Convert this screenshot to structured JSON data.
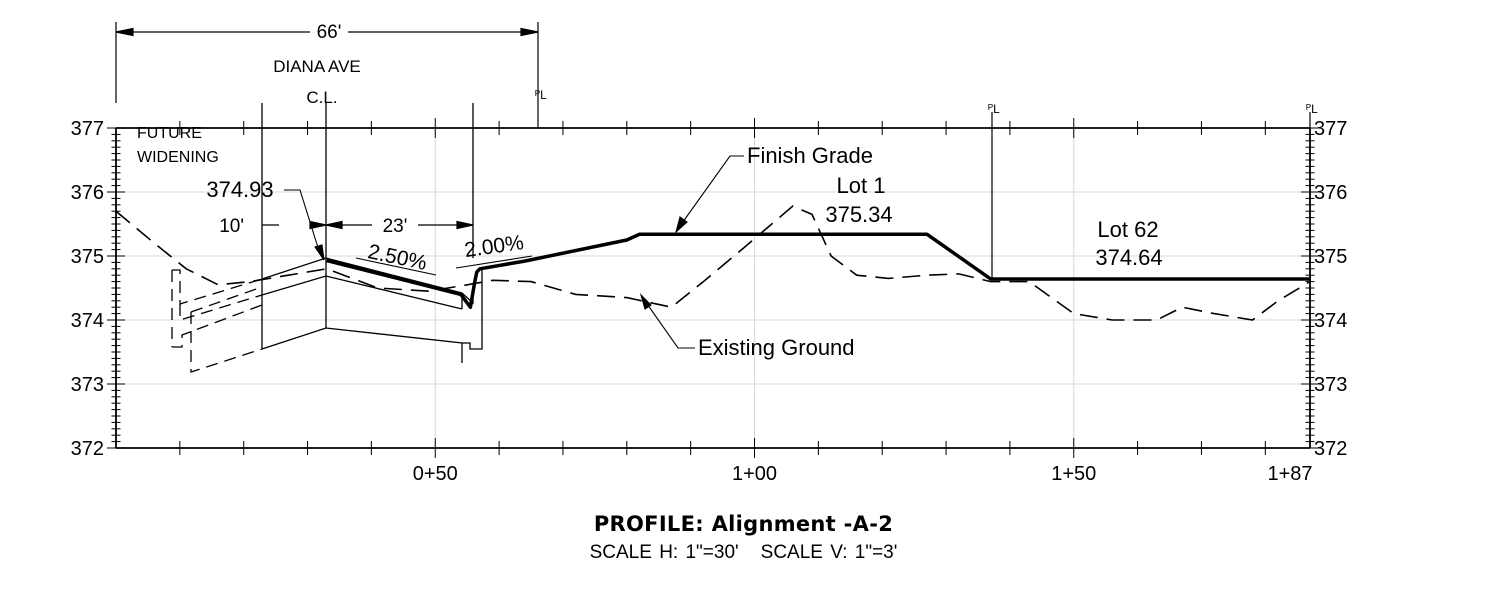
{
  "profile": {
    "title": "PROFILE:  Alignment -A-2",
    "scale_h": "SCALE H: 1\"=30'",
    "scale_v": "SCALE V: 1\"=3'"
  },
  "axes": {
    "y_left_labels": [
      "377",
      "376",
      "375",
      "374",
      "373",
      "372"
    ],
    "y_right_labels": [
      "377",
      "376",
      "375",
      "374",
      "373",
      "372"
    ],
    "x_labels": [
      "0+50",
      "1+00",
      "1+50",
      "1+87"
    ]
  },
  "annotations": {
    "width_66": "66'",
    "street_name": "DIANA AVE",
    "centerline": "C.L.",
    "future_widening_1": "FUTURE",
    "future_widening_2": "WIDENING",
    "elev_cl": "374.93",
    "dim_10": "10'",
    "dim_23": "23'",
    "slope_250": "2.50%",
    "slope_200": "2.00%",
    "finish_grade": "Finish Grade",
    "existing_ground": "Existing Ground",
    "lot1_name": "Lot 1",
    "lot1_elev": "375.34",
    "lot62_name": "Lot 62",
    "lot62_elev": "374.64",
    "pl_1": "ᴾL",
    "pl_2": "ᴾL",
    "pl_3": "ᴾL"
  },
  "chart_data": {
    "type": "line",
    "xlabel": "",
    "ylabel": "",
    "xlim": [
      0,
      187
    ],
    "ylim": [
      372,
      377
    ],
    "x_tick_labels": [
      "0+50",
      "1+00",
      "1+50",
      "1+87"
    ],
    "y_tick_labels": [
      "372",
      "373",
      "374",
      "375",
      "376",
      "377"
    ],
    "series": [
      {
        "name": "Finish Grade",
        "x": [
          33,
          54,
          55.5,
          56.2,
          56.5,
          57,
          64,
          80,
          82,
          106,
          127,
          137,
          187
        ],
        "y": [
          374.93,
          374.4,
          374.2,
          374.6,
          374.75,
          374.8,
          374.92,
          375.25,
          375.34,
          375.34,
          375.34,
          374.64,
          374.64
        ]
      },
      {
        "name": "Existing Ground",
        "x": [
          0,
          6,
          11,
          16,
          21,
          27,
          33,
          41,
          49,
          55,
          59,
          65,
          72,
          80,
          87,
          92,
          98,
          106,
          109,
          112,
          116,
          121,
          127,
          132,
          137,
          143,
          150,
          156,
          163,
          167,
          172,
          178,
          182,
          187
        ],
        "y": [
          375.7,
          375.2,
          374.8,
          374.55,
          374.6,
          374.7,
          374.8,
          374.5,
          374.45,
          374.55,
          374.62,
          374.6,
          374.4,
          374.35,
          374.2,
          374.6,
          375.1,
          375.78,
          375.65,
          375.0,
          374.7,
          374.65,
          374.7,
          374.72,
          374.6,
          374.6,
          374.1,
          374.0,
          374.0,
          374.2,
          374.1,
          374.0,
          374.3,
          374.6
        ]
      }
    ]
  }
}
